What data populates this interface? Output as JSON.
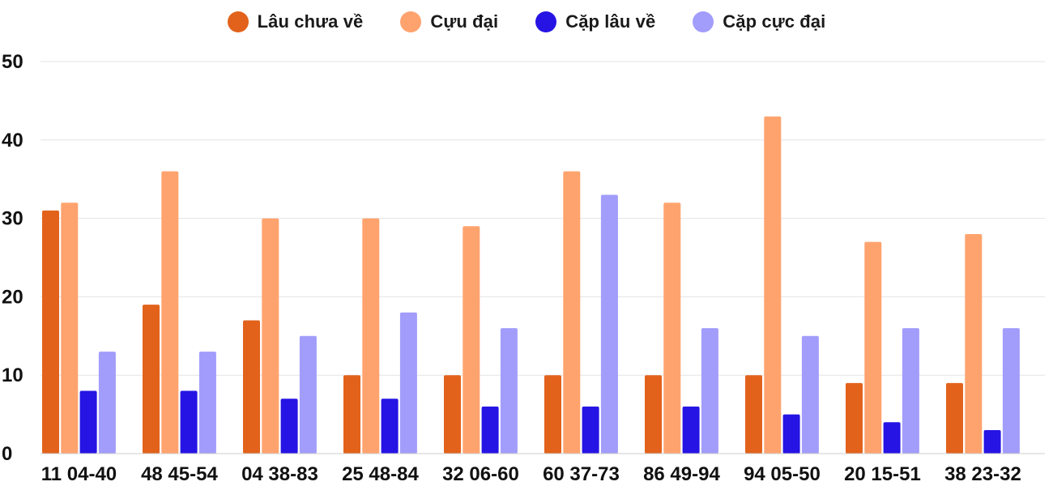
{
  "chart_data": {
    "type": "bar",
    "title": "",
    "xlabel": "",
    "ylabel": "",
    "ylim": [
      0,
      50
    ],
    "yticks": [
      0,
      10,
      20,
      30,
      40,
      50
    ],
    "grid": true,
    "legend_position": "top-center",
    "categories": [
      "11 04-40",
      "48 45-54",
      "04 38-83",
      "25 48-84",
      "32 06-60",
      "60 37-73",
      "86 49-94",
      "94 05-50",
      "20 15-51",
      "38 23-32"
    ],
    "series": [
      {
        "name": "Lâu chưa về",
        "color": "#e2621b",
        "values": [
          31,
          19,
          17,
          10,
          10,
          10,
          10,
          10,
          9,
          9
        ]
      },
      {
        "name": "Cựu đại",
        "color": "#ffa36e",
        "values": [
          32,
          36,
          30,
          30,
          29,
          36,
          32,
          43,
          27,
          28
        ]
      },
      {
        "name": "Cặp lâu về",
        "color": "#2614e4",
        "values": [
          8,
          8,
          7,
          7,
          6,
          6,
          6,
          5,
          4,
          3
        ]
      },
      {
        "name": "Cặp cực đại",
        "color": "#a29dfb",
        "values": [
          13,
          13,
          15,
          18,
          16,
          33,
          16,
          15,
          16,
          16
        ]
      }
    ]
  }
}
